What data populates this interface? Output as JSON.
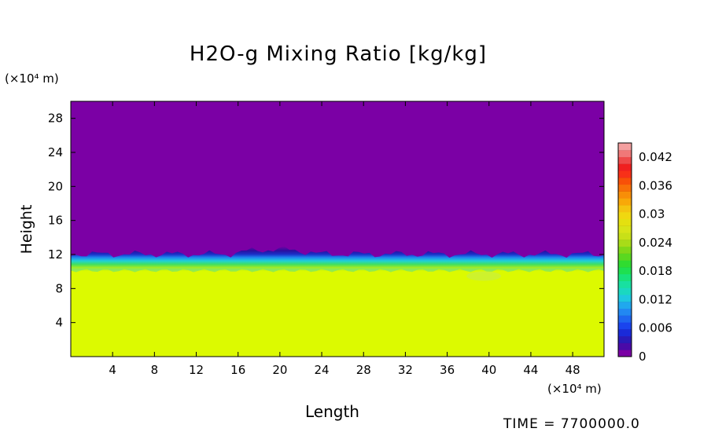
{
  "chart_data": {
    "type": "heatmap",
    "title": "H2O-g Mixing Ratio [kg/kg]",
    "xlabel": "Length",
    "ylabel": "Height",
    "x_unit": "(×10⁴ m)",
    "y_unit": "(×10⁴ m)",
    "xlim": [
      0,
      51
    ],
    "ylim": [
      0,
      30
    ],
    "x_ticks": [
      "4",
      "8",
      "12",
      "16",
      "20",
      "24",
      "28",
      "32",
      "36",
      "40",
      "44",
      "48"
    ],
    "y_ticks": [
      "4",
      "8",
      "12",
      "16",
      "20",
      "24",
      "28"
    ],
    "colorbar": {
      "min": 0,
      "max": 0.045,
      "ticks": [
        "0",
        "0.006",
        "0.012",
        "0.018",
        "0.024",
        "0.03",
        "0.036",
        "0.042"
      ],
      "colors": [
        "#7a00a4",
        "#4a0aa8",
        "#2a1ab8",
        "#1a2ad8",
        "#1a44ee",
        "#1e66f0",
        "#2288f2",
        "#20a8ee",
        "#1ec8e0",
        "#1ad8c0",
        "#18e0a0",
        "#18e27a",
        "#1ee050",
        "#30dc30",
        "#5ad820",
        "#80d818",
        "#a8dc18",
        "#c8e018",
        "#d8e418",
        "#e4e010",
        "#f0d810",
        "#f4c410",
        "#f8a808",
        "#f88e08",
        "#f87008",
        "#f85008",
        "#f83018",
        "#f02020",
        "#ee4a4a",
        "#f07878",
        "#f4a0a0"
      ]
    },
    "layers": [
      {
        "name": "upper",
        "value": 0.0,
        "color": "#7b00a5"
      },
      {
        "name": "lower",
        "value": 0.0295,
        "color": "#dcfa00"
      }
    ],
    "transition_height": 10.2
  },
  "footer": {
    "time_label": "TIME  =  7700000.0"
  }
}
